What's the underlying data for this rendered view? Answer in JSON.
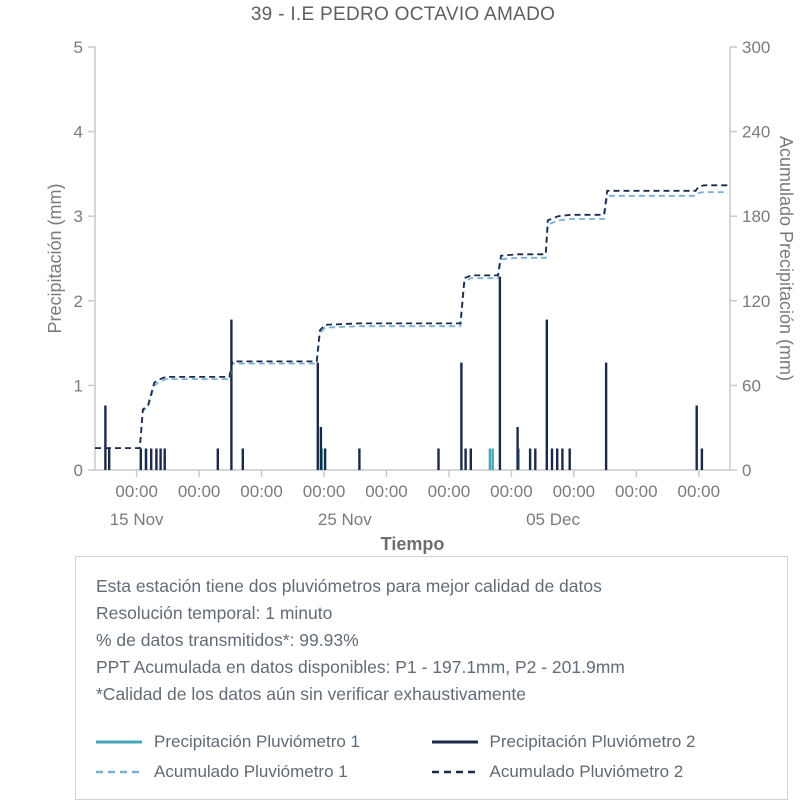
{
  "chart_data": {
    "type": "mixed",
    "title": "39 - I.E PEDRO OCTAVIO AMADO",
    "x_axis": {
      "label": "Tiempo",
      "range_days": [
        0,
        30.5
      ],
      "tick_label": "00:00",
      "tick_days": [
        2,
        5,
        8,
        11,
        14,
        17,
        20,
        23,
        26,
        29
      ],
      "date_labels": [
        {
          "day": 2,
          "label": "15 Nov"
        },
        {
          "day": 12,
          "label": "25 Nov"
        },
        {
          "day": 22,
          "label": "05 Dec"
        }
      ]
    },
    "y_left": {
      "label": "Precipitación (mm)",
      "range": [
        0,
        5
      ],
      "ticks": [
        0,
        1,
        2,
        3,
        4,
        5
      ]
    },
    "y_right": {
      "label": "Acumulado Precipitación (mm)",
      "range": [
        0,
        300
      ],
      "ticks": [
        0,
        60,
        120,
        180,
        240,
        300
      ]
    },
    "style": {
      "axis_color": "#c9c9c9",
      "tick_text_color": "#7b7b7b",
      "teal": "#44a6b6",
      "navy": "#1b2a49",
      "lightblue": "#7ab0d4"
    },
    "series": [
      {
        "name": "Precipitación Pluviómetro 1",
        "type": "bars",
        "axis": "left",
        "color": "#44a6b6",
        "points": [
          [
            2.45,
            0.254
          ],
          [
            10.9,
            0.254
          ],
          [
            18.97,
            0.254
          ],
          [
            19.1,
            0.254
          ],
          [
            20.35,
            0.254
          ]
        ]
      },
      {
        "name": "Precipitación Pluviómetro 2",
        "type": "bars",
        "axis": "left",
        "color": "#1b2a49",
        "points": [
          [
            0.5,
            0.762
          ],
          [
            0.68,
            0.254
          ],
          [
            2.2,
            0.254
          ],
          [
            2.45,
            0.254
          ],
          [
            2.7,
            0.254
          ],
          [
            2.95,
            0.254
          ],
          [
            3.15,
            0.254
          ],
          [
            3.35,
            0.254
          ],
          [
            5.9,
            0.254
          ],
          [
            6.55,
            1.778
          ],
          [
            7.1,
            0.254
          ],
          [
            10.7,
            1.27
          ],
          [
            10.85,
            0.508
          ],
          [
            11.05,
            0.254
          ],
          [
            12.7,
            0.254
          ],
          [
            16.5,
            0.254
          ],
          [
            17.6,
            1.27
          ],
          [
            17.8,
            0.254
          ],
          [
            18.05,
            0.254
          ],
          [
            19.45,
            2.286
          ],
          [
            20.3,
            0.508
          ],
          [
            20.9,
            0.254
          ],
          [
            21.15,
            0.254
          ],
          [
            21.7,
            1.778
          ],
          [
            21.95,
            0.254
          ],
          [
            22.2,
            0.254
          ],
          [
            22.45,
            0.254
          ],
          [
            22.8,
            0.254
          ],
          [
            24.55,
            1.27
          ],
          [
            28.9,
            0.762
          ],
          [
            29.15,
            0.254
          ]
        ]
      },
      {
        "name": "Acumulado Pluviómetro 1",
        "type": "step",
        "axis": "right",
        "color": "#7ab0d4",
        "dash": true,
        "points": [
          [
            0,
            15.5
          ],
          [
            2.15,
            15.5
          ],
          [
            2.3,
            42
          ],
          [
            2.55,
            45
          ],
          [
            2.85,
            60
          ],
          [
            3.05,
            62
          ],
          [
            3.4,
            64.5
          ],
          [
            6.45,
            64.5
          ],
          [
            6.6,
            75.5
          ],
          [
            10.65,
            75.5
          ],
          [
            10.8,
            97
          ],
          [
            11.05,
            101
          ],
          [
            12.7,
            102
          ],
          [
            16.5,
            102
          ],
          [
            17.55,
            102
          ],
          [
            17.75,
            134
          ],
          [
            18.05,
            136
          ],
          [
            19.35,
            136
          ],
          [
            19.5,
            149.5
          ],
          [
            20.3,
            150.5
          ],
          [
            21.65,
            150.5
          ],
          [
            21.75,
            174
          ],
          [
            22.25,
            177
          ],
          [
            22.85,
            178
          ],
          [
            24.45,
            178
          ],
          [
            24.6,
            194.5
          ],
          [
            28.85,
            194.5
          ],
          [
            29.0,
            196.5
          ],
          [
            29.25,
            197.1
          ],
          [
            30.4,
            197.1
          ]
        ]
      },
      {
        "name": "Acumulado Pluviómetro 2",
        "type": "step",
        "axis": "right",
        "color": "#1b2a49",
        "dash": true,
        "points": [
          [
            0,
            15.5
          ],
          [
            2.15,
            15.5
          ],
          [
            2.3,
            43
          ],
          [
            2.55,
            46
          ],
          [
            2.85,
            62
          ],
          [
            3.05,
            64
          ],
          [
            3.4,
            66
          ],
          [
            6.45,
            66
          ],
          [
            6.6,
            77
          ],
          [
            10.65,
            77
          ],
          [
            10.8,
            99
          ],
          [
            11.05,
            103
          ],
          [
            12.7,
            104
          ],
          [
            16.5,
            104
          ],
          [
            17.55,
            104
          ],
          [
            17.75,
            136
          ],
          [
            18.05,
            138
          ],
          [
            19.35,
            138
          ],
          [
            19.5,
            152
          ],
          [
            20.3,
            153
          ],
          [
            21.65,
            153
          ],
          [
            21.75,
            177
          ],
          [
            22.25,
            180
          ],
          [
            22.85,
            181
          ],
          [
            24.45,
            181
          ],
          [
            24.6,
            198
          ],
          [
            28.85,
            198
          ],
          [
            29.0,
            201
          ],
          [
            29.25,
            201.9
          ],
          [
            30.4,
            201.9
          ]
        ]
      }
    ]
  },
  "info": {
    "lines": [
      "Esta estación tiene dos pluviómetros para mejor calidad de datos",
      "Resolución temporal: 1 minuto",
      "% de datos transmitidos*: 99.93%",
      "PPT Acumulada en datos disponibles: P1 - 197.1mm, P2 - 201.9mm",
      "*Calidad de los datos aún sin verificar exhaustivamente"
    ]
  },
  "legend": {
    "items": [
      {
        "label": "Precipitación Pluviómetro 1",
        "color": "#44a6b6",
        "dash": "solid"
      },
      {
        "label": "Precipitación Pluviómetro 2",
        "color": "#1b2a49",
        "dash": "solid"
      },
      {
        "label": "Acumulado Pluviómetro 1",
        "color": "#7ab0d4",
        "dash": "dash"
      },
      {
        "label": "Acumulado Pluviómetro 2",
        "color": "#1b2a49",
        "dash": "dash"
      }
    ]
  }
}
